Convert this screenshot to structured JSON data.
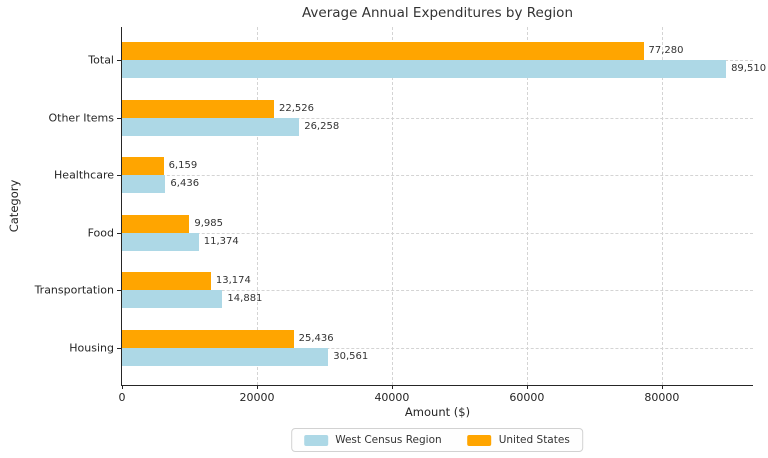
{
  "chart_data": {
    "type": "bar",
    "orientation": "horizontal",
    "title": "Average Annual Expenditures by Region",
    "xlabel": "Amount ($)",
    "ylabel": "Category",
    "categories_top_to_bottom": [
      "Total",
      "Other Items",
      "Healthcare",
      "Food",
      "Transportation",
      "Housing"
    ],
    "series": [
      {
        "name": "West Census Region",
        "color": "#ADD8E6",
        "values": [
          89510,
          26258,
          6436,
          11374,
          14881,
          30561
        ]
      },
      {
        "name": "United States",
        "color": "#FFA500",
        "values": [
          77280,
          22526,
          6159,
          9985,
          13174,
          25436
        ]
      }
    ],
    "group_order_top_first": [
      "United States",
      "West Census Region"
    ],
    "value_labels": [
      "77,280",
      "89,510",
      "22,526",
      "26,258",
      "6,159",
      "6,436",
      "9,985",
      "11,374",
      "13,174",
      "14,881",
      "25,436",
      "30,561"
    ],
    "x_ticks": [
      0,
      20000,
      40000,
      60000,
      80000
    ],
    "x_tick_labels": [
      "0",
      "20000",
      "40000",
      "60000",
      "80000"
    ],
    "xlim": [
      0,
      93500
    ],
    "grid": "both-dashed",
    "legend_position": "bottom-center",
    "colors": {
      "west_census_region": "#ADD8E6",
      "united_states": "#FFA500",
      "grid": "#d4d4d4",
      "text": "#262626"
    }
  }
}
